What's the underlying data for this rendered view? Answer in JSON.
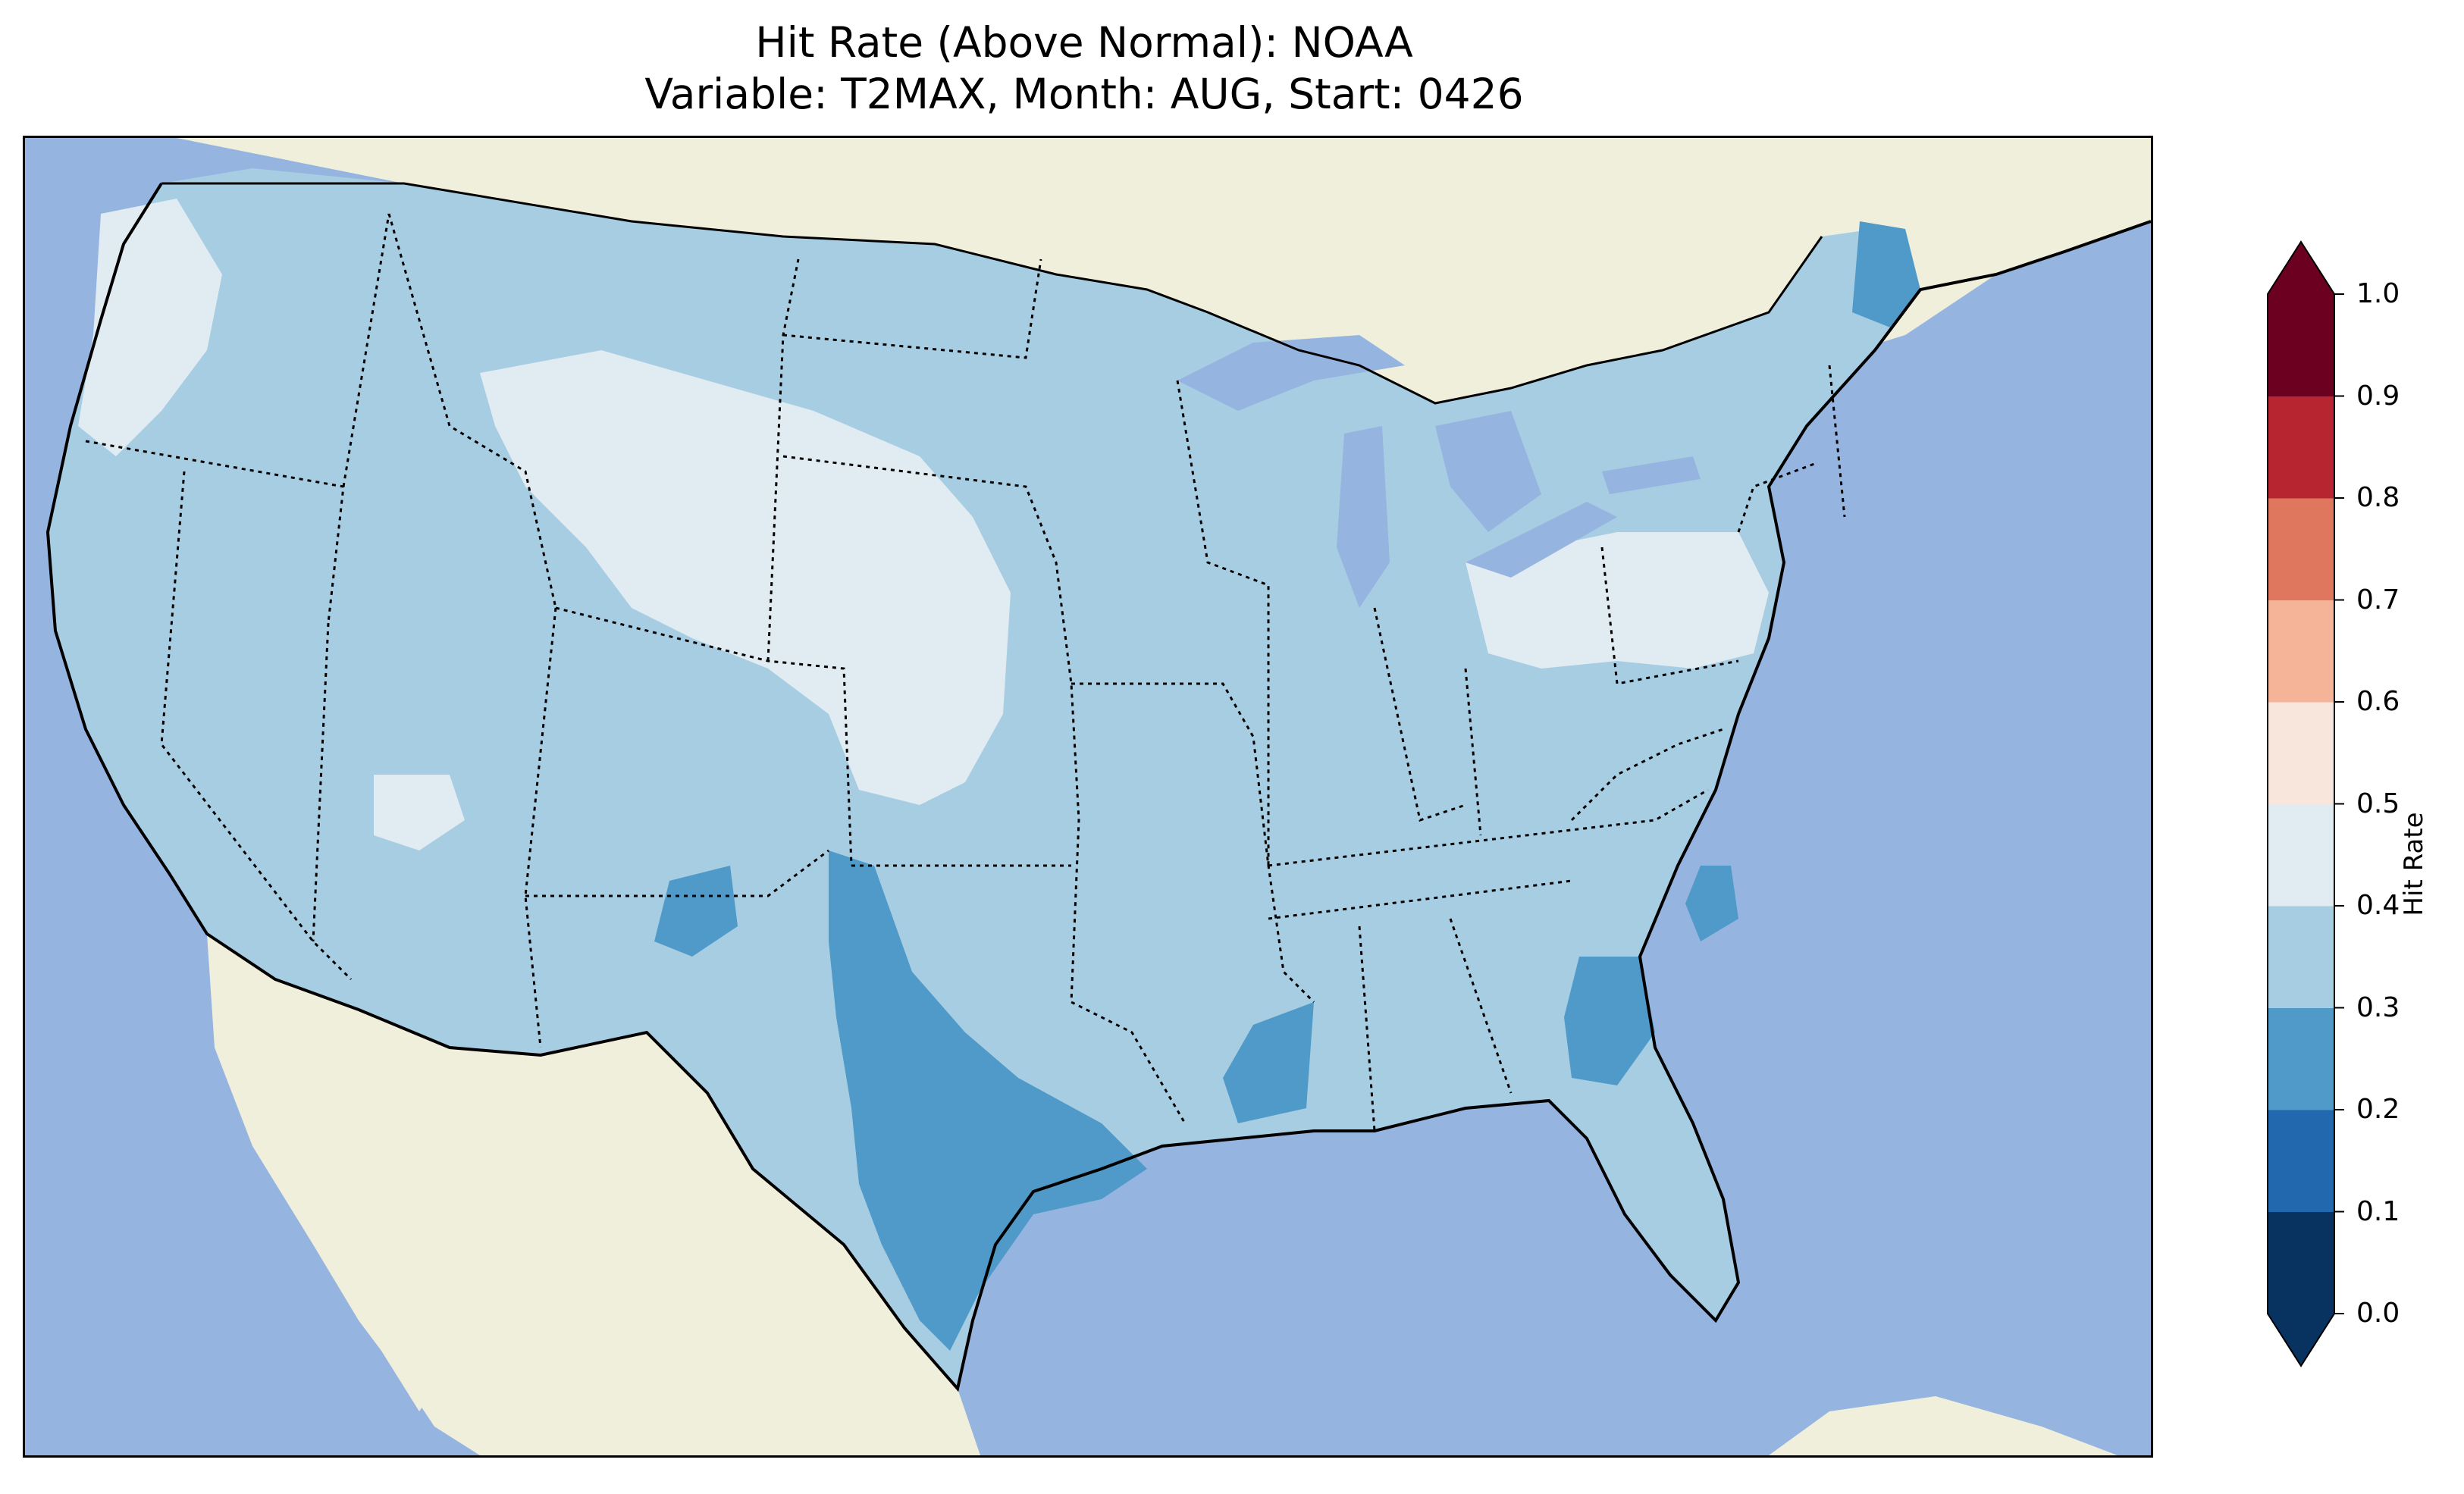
{
  "title": {
    "line1": "Hit Rate (Above Normal): NOAA",
    "line2": "Variable: T2MAX, Month: AUG, Start: 0426"
  },
  "colors": {
    "ocean": "#96b4e0",
    "land": "#f0efdc",
    "lakes": "#96b4e0"
  },
  "map_data": {
    "region": "Contiguous United States",
    "variable": "T2MAX",
    "month": "AUG",
    "start": "0426",
    "features": [
      "coastlines",
      "state borders",
      "country borders",
      "lakes",
      "ocean"
    ],
    "notable_areas": [
      {
        "area": "Texas",
        "hit_rate_bin": "0.2-0.3"
      },
      {
        "area": "Maine",
        "hit_rate_bin": "0.2-0.3"
      },
      {
        "area": "Georgia",
        "hit_rate_bin": "0.2-0.3"
      },
      {
        "area": "Wyoming",
        "hit_rate_bin": "0.4-0.5"
      },
      {
        "area": "Nebraska",
        "hit_rate_bin": "0.4-0.5"
      },
      {
        "area": "most of CONUS",
        "hit_rate_bin": "0.3-0.4"
      }
    ]
  },
  "colorbar": {
    "label": "Hit Rate",
    "ticks": [
      "0.0",
      "0.1",
      "0.2",
      "0.3",
      "0.4",
      "0.5",
      "0.6",
      "0.7",
      "0.8",
      "0.9",
      "1.0"
    ],
    "bins": [
      {
        "range": [
          0.0,
          0.1
        ],
        "color": "#08325f"
      },
      {
        "range": [
          0.1,
          0.2
        ],
        "color": "#2268ae"
      },
      {
        "range": [
          0.2,
          0.3
        ],
        "color": "#4f9ac8"
      },
      {
        "range": [
          0.3,
          0.4
        ],
        "color": "#a7cde3"
      },
      {
        "range": [
          0.4,
          0.5
        ],
        "color": "#e1ebf2"
      },
      {
        "range": [
          0.5,
          0.6
        ],
        "color": "#f8e6dc"
      },
      {
        "range": [
          0.6,
          0.7
        ],
        "color": "#f5b497"
      },
      {
        "range": [
          0.7,
          0.8
        ],
        "color": "#df765e"
      },
      {
        "range": [
          0.8,
          0.9
        ],
        "color": "#b72630"
      },
      {
        "range": [
          0.9,
          1.0
        ],
        "color": "#6c0020"
      }
    ],
    "extend": "both"
  }
}
